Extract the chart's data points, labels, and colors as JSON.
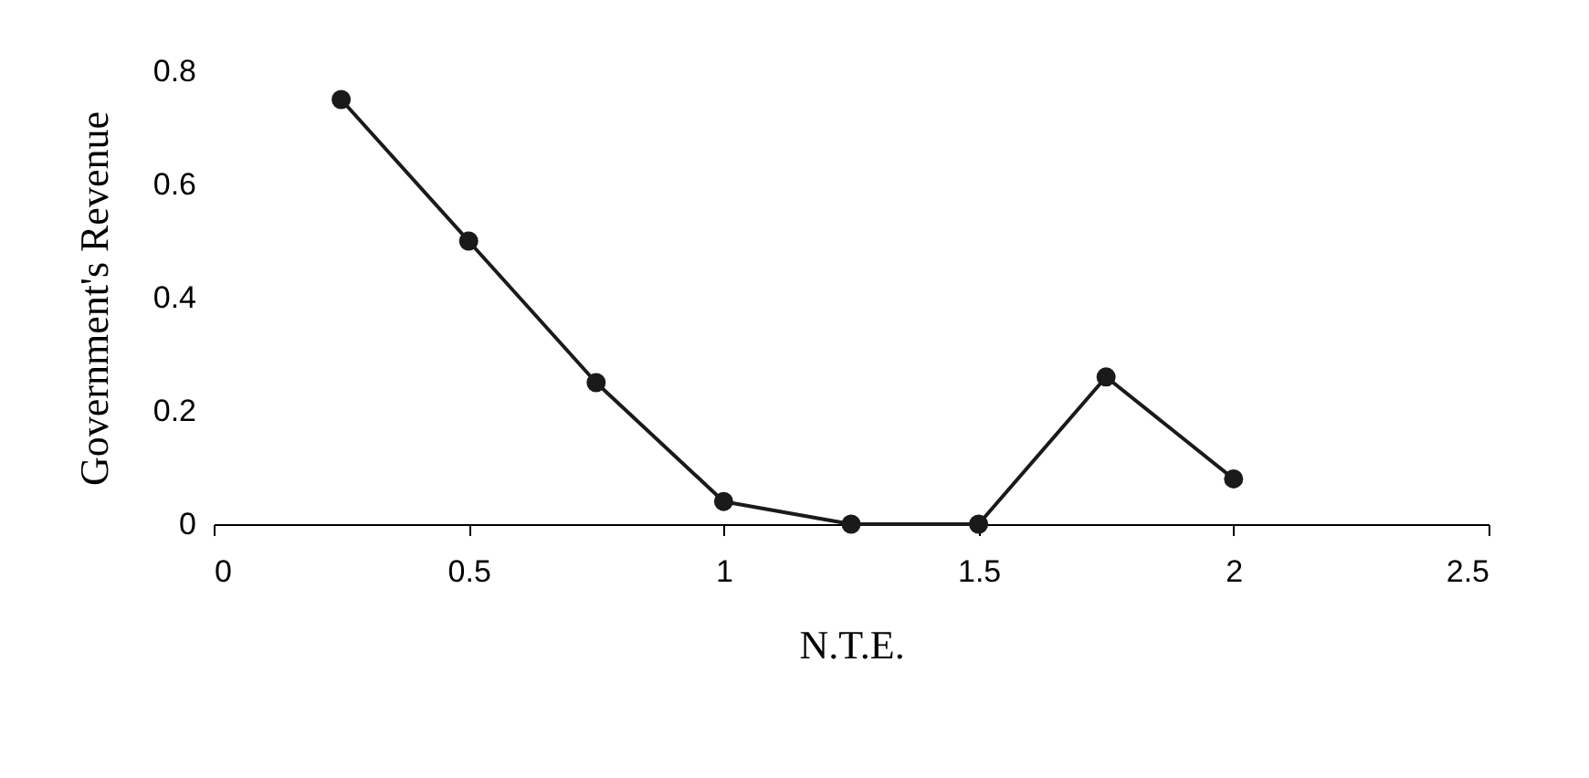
{
  "chart_data": {
    "type": "line",
    "xlabel": "N.T.E.",
    "ylabel": "Government's Revenue",
    "x": [
      0.25,
      0.5,
      0.75,
      1,
      1.25,
      1.5,
      1.75,
      2
    ],
    "series": [
      {
        "color": "#1a1a1a",
        "values": [
          0.75,
          0.5,
          0.25,
          0.04,
          0,
          0,
          0.26,
          0.08
        ]
      }
    ],
    "xlim": [
      0,
      2.5
    ],
    "xticks": [
      0,
      0.5,
      1,
      1.5,
      2,
      2.5
    ],
    "ylim": [
      0,
      0.8
    ],
    "yticks": [
      0,
      0.2,
      0.4,
      0.6,
      0.8
    ],
    "grid": false,
    "marker": "circle",
    "line_style": "solid"
  }
}
